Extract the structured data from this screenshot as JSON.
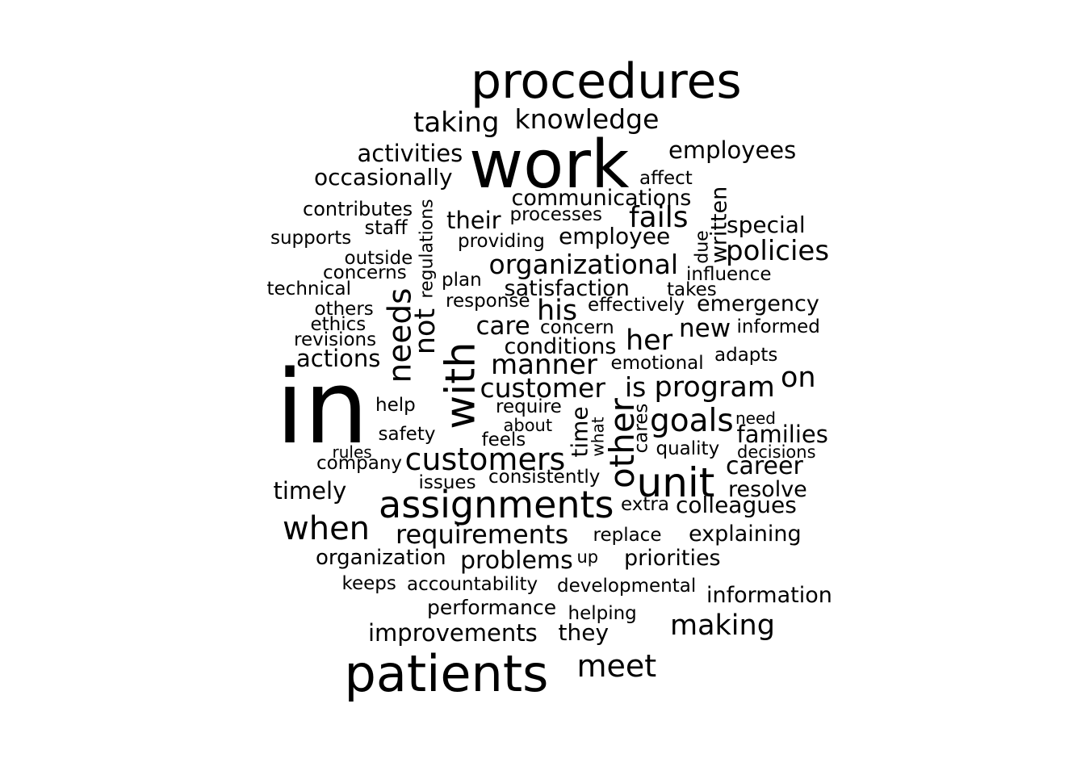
{
  "words": [
    "procedures",
    "taking",
    "knowledge",
    "work",
    "activities",
    "employees",
    "occasionally",
    "affect",
    "communications",
    "contributes",
    "written",
    "staff",
    "processes",
    "their",
    "fails",
    "special",
    "supports",
    "regulations",
    "providing",
    "employee",
    "due",
    "policies",
    "outside",
    "organizational",
    "concerns",
    "influence",
    "plan",
    "technical",
    "satisfaction",
    "takes",
    "needs",
    "response",
    "his",
    "effectively",
    "emergency",
    "others",
    "not",
    "ethics",
    "care",
    "concern",
    "new",
    "informed",
    "revisions",
    "her",
    "conditions",
    "actions",
    "manner",
    "with",
    "adapts",
    "emotional",
    "in",
    "on",
    "customer",
    "is",
    "program",
    "help",
    "require",
    "time",
    "goals",
    "need",
    "other",
    "what",
    "cares",
    "safety",
    "about",
    "families",
    "feels",
    "rules",
    "quality",
    "decisions",
    "company",
    "customers",
    "career",
    "consistently",
    "unit",
    "issues",
    "timely",
    "resolve",
    "assignments",
    "extra",
    "colleagues",
    "when",
    "requirements",
    "replace",
    "explaining",
    "organization",
    "problems",
    "up",
    "priorities",
    "keeps",
    "accountability",
    "developmental",
    "performance",
    "information",
    "helping",
    "improvements",
    "they",
    "making",
    "patients",
    "meet"
  ],
  "colors": {
    "background": "#ffffff",
    "text": "#000000"
  }
}
